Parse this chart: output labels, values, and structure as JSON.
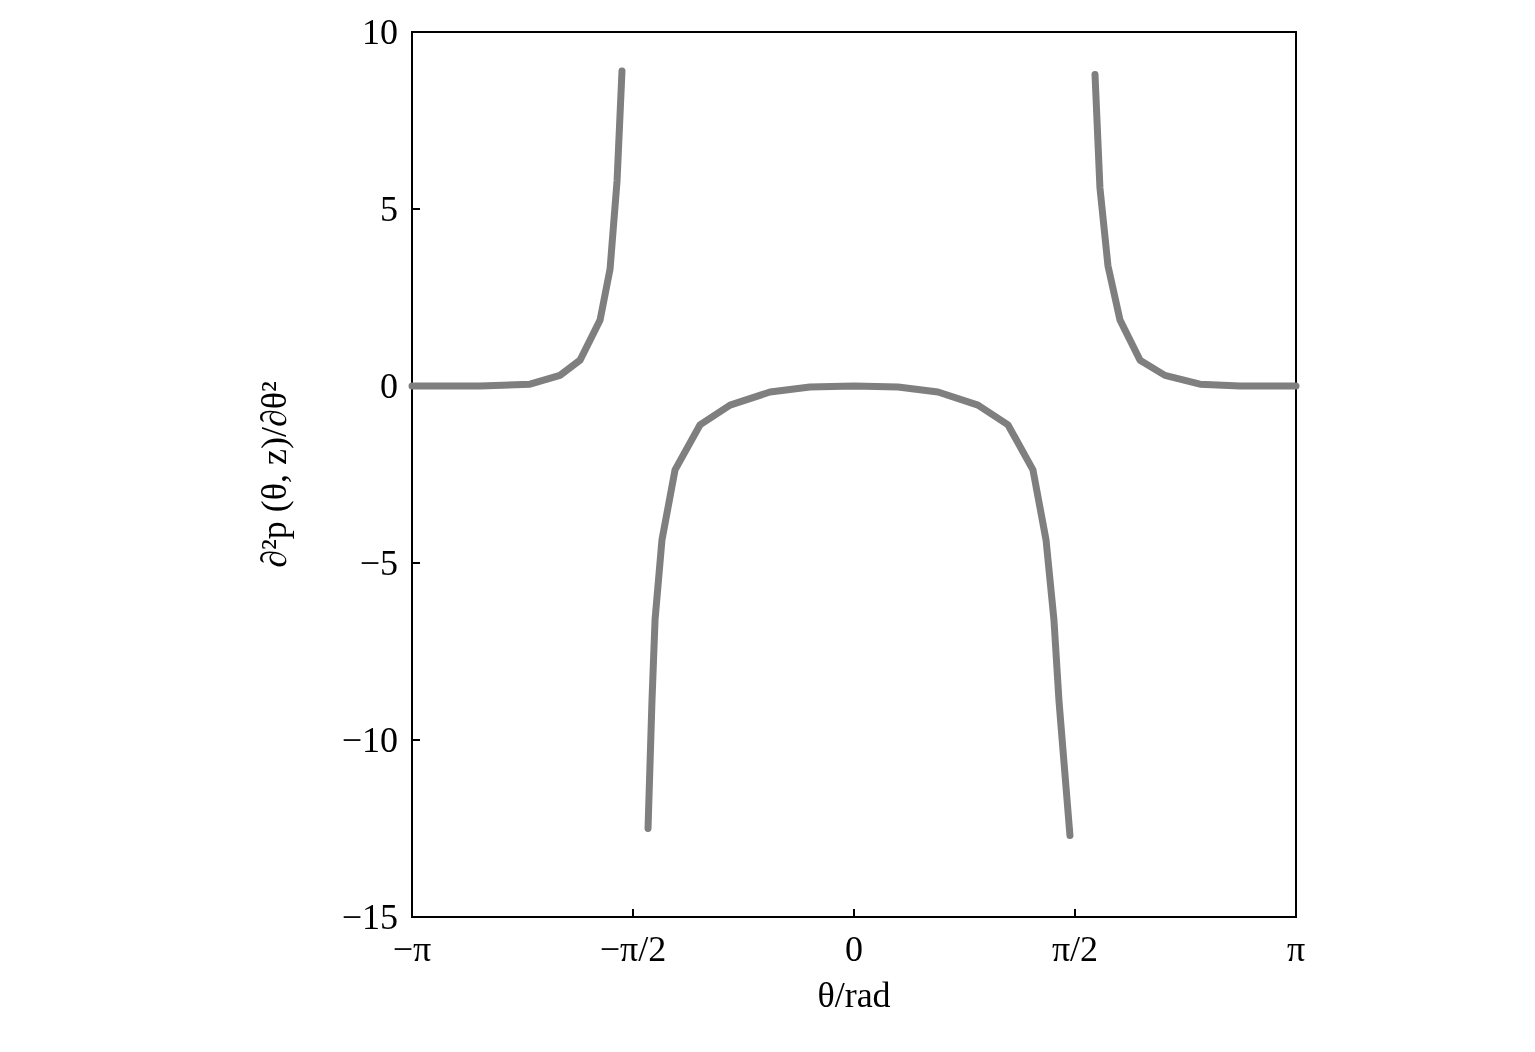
{
  "chart_data": {
    "type": "line",
    "xlabel": "θ/rad",
    "ylabel": "∂²p (θ, z)/∂θ²",
    "x": [
      -3.1416,
      -2.658,
      -2.303,
      -2.09,
      -1.947,
      -1.805,
      -1.734,
      -1.684,
      -1.649,
      -1.55,
      -1.464,
      -1.436,
      -1.414,
      -1.365,
      -1.272,
      -1.095,
      -0.881,
      -0.597,
      -0.313,
      0,
      0.313,
      0.597,
      0.881,
      1.095,
      1.272,
      1.365,
      1.421,
      1.457,
      1.535,
      1.62,
      1.713,
      1.748,
      1.805,
      1.891,
      2.033,
      2.21,
      2.459,
      2.743,
      3.1416
    ],
    "series": [
      {
        "color": "#7f7f7f",
        "values": [
          0,
          0,
          0.05,
          0.3,
          0.73,
          1.86,
          3.3,
          5.8,
          8.9,
          null,
          -12.5,
          -8.9,
          -6.6,
          -4.35,
          -2.37,
          -1.1,
          -0.54,
          -0.17,
          -0.03,
          0,
          -0.03,
          -0.17,
          -0.54,
          -1.1,
          -2.37,
          -4.35,
          -6.6,
          -8.9,
          -12.7,
          null,
          8.8,
          5.6,
          3.4,
          1.86,
          0.73,
          0.3,
          0.05,
          0,
          0
        ]
      }
    ],
    "xlim": [
      -3.1416,
      3.1416
    ],
    "xticks": [
      {
        "value": -3.1416,
        "label": "−π"
      },
      {
        "value": -1.5708,
        "label": "−π/2"
      },
      0,
      {
        "value": 1.5708,
        "label": "π/2"
      },
      {
        "value": 3.1416,
        "label": "π"
      }
    ],
    "ylim": [
      -15,
      10
    ],
    "yticks": [
      {
        "value": -15,
        "label": "−15"
      },
      {
        "value": -10,
        "label": "−10"
      },
      {
        "value": -5,
        "label": "−5"
      },
      0,
      5,
      10
    ],
    "grid": false,
    "marker": "none"
  }
}
